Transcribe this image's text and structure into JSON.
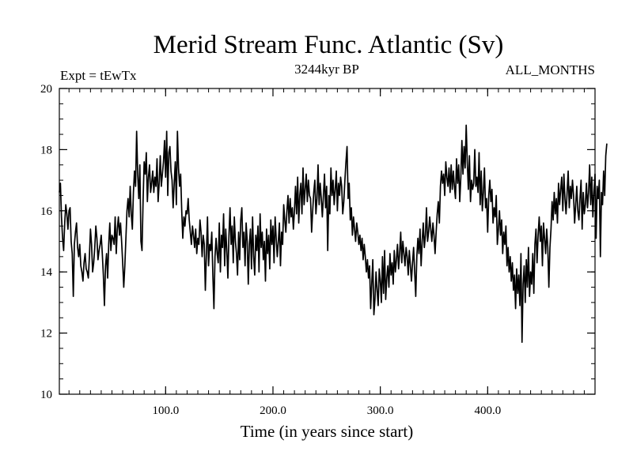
{
  "chart_data": {
    "type": "line",
    "title": "Merid Stream Func. Atlantic (Sv)",
    "subtitle_left": "Expt = tEwTx",
    "subtitle_center": "3244kyr BP",
    "subtitle_right": "ALL_MONTHS",
    "xlabel": "Time (in years since start)",
    "ylabel": "",
    "xlim": [
      1,
      500
    ],
    "ylim": [
      10,
      20
    ],
    "x_ticks": [
      100,
      200,
      300,
      400
    ],
    "x_tick_labels": [
      "100.0",
      "200.0",
      "300.0",
      "400.0"
    ],
    "y_ticks": [
      10,
      12,
      14,
      16,
      18,
      20
    ],
    "y_tick_labels": [
      "10",
      "12",
      "14",
      "16",
      "18",
      "20"
    ],
    "x_minor_step": 10,
    "y_minor_step": 0.5,
    "series": [
      {
        "name": "Merid Stream Func. Atlantic",
        "color": "#000000",
        "x_start": 1,
        "x_step": 1,
        "values": [
          16.6,
          16.9,
          15.8,
          15.1,
          14.7,
          15.6,
          16.2,
          15.9,
          15.4,
          16.0,
          16.1,
          15.0,
          14.6,
          13.2,
          14.9,
          15.3,
          15.6,
          14.8,
          14.5,
          14.9,
          14.2,
          14.0,
          13.7,
          14.3,
          14.6,
          14.1,
          14.0,
          13.8,
          14.5,
          15.4,
          14.9,
          14.0,
          14.3,
          14.8,
          15.5,
          15.1,
          14.4,
          14.7,
          14.9,
          15.2,
          14.6,
          13.9,
          12.9,
          14.2,
          14.6,
          13.8,
          14.9,
          15.6,
          14.7,
          15.2,
          15.1,
          14.9,
          15.8,
          14.6,
          15.4,
          15.8,
          15.2,
          15.6,
          15.0,
          14.3,
          13.5,
          14.2,
          15.1,
          16.0,
          16.4,
          15.8,
          16.8,
          15.9,
          15.4,
          16.6,
          17.3,
          16.8,
          18.6,
          17.2,
          16.4,
          17.5,
          15.0,
          14.7,
          16.3,
          17.6,
          17.2,
          17.9,
          16.3,
          17.1,
          17.5,
          16.6,
          16.9,
          17.3,
          16.6,
          17.1,
          16.8,
          17.7,
          16.3,
          16.9,
          17.8,
          16.8,
          17.2,
          17.6,
          18.3,
          17.1,
          18.6,
          16.5,
          17.9,
          18.1,
          17.3,
          17.0,
          16.1,
          16.9,
          17.6,
          16.2,
          18.6,
          17.4,
          16.8,
          17.2,
          16.0,
          15.1,
          15.8,
          15.5,
          16.0,
          15.9,
          16.4,
          15.7,
          15.3,
          14.9,
          15.5,
          15.2,
          14.8,
          15.4,
          14.6,
          15.1,
          14.9,
          15.7,
          15.3,
          14.5,
          15.2,
          14.9,
          13.4,
          14.6,
          15.8,
          14.2,
          14.9,
          14.7,
          15.3,
          13.9,
          12.8,
          14.5,
          15.1,
          14.6,
          14.3,
          15.6,
          14.0,
          15.2,
          14.8,
          15.9,
          14.2,
          15.4,
          14.7,
          13.8,
          15.2,
          16.1,
          14.9,
          15.5,
          14.3,
          15.8,
          15.0,
          14.6,
          13.9,
          15.3,
          14.4,
          15.7,
          16.1,
          14.8,
          15.3,
          14.2,
          15.6,
          15.0,
          13.6,
          14.9,
          15.4,
          14.1,
          15.8,
          14.5,
          13.9,
          15.2,
          14.7,
          15.5,
          14.0,
          15.9,
          14.8,
          15.3,
          14.4,
          15.0,
          13.7,
          15.4,
          14.6,
          15.2,
          14.1,
          15.7,
          14.9,
          15.5,
          14.3,
          15.8,
          15.1,
          14.5,
          15.0,
          15.6,
          14.2,
          15.3,
          14.9,
          16.2,
          15.7,
          15.3,
          16.0,
          16.5,
          15.6,
          16.4,
          15.8,
          16.1,
          15.4,
          16.0,
          16.8,
          15.9,
          17.1,
          15.6,
          16.5,
          16.9,
          15.9,
          17.4,
          16.2,
          16.7,
          17.2,
          16.3,
          17.0,
          16.5,
          16.4,
          15.3,
          16.0,
          16.6,
          17.0,
          15.9,
          16.4,
          17.5,
          16.2,
          16.9,
          16.4,
          15.8,
          16.5,
          17.2,
          16.1,
          16.8,
          14.7,
          16.5,
          15.9,
          17.4,
          16.5,
          17.0,
          16.2,
          16.7,
          17.3,
          16.0,
          16.9,
          16.5,
          17.1,
          16.8,
          15.9,
          16.3,
          17.0,
          17.6,
          18.1,
          16.4,
          16.9,
          15.7,
          16.1,
          15.2,
          15.8,
          15.4,
          15.0,
          15.6,
          15.3,
          14.9,
          15.2,
          14.7,
          15.1,
          14.4,
          14.9,
          14.5,
          14.0,
          14.4,
          13.8,
          14.2,
          12.8,
          13.6,
          14.4,
          12.6,
          13.1,
          14.0,
          13.4,
          12.9,
          14.1,
          13.7,
          13.0,
          14.5,
          13.3,
          14.7,
          13.1,
          13.8,
          14.2,
          13.5,
          14.6,
          13.9,
          14.3,
          13.6,
          14.7,
          14.0,
          14.4,
          14.9,
          14.1,
          14.6,
          15.3,
          14.3,
          15.0,
          14.6,
          14.2,
          14.8,
          14.5,
          13.9,
          14.7,
          14.2,
          13.7,
          14.3,
          14.8,
          14.0,
          13.2,
          14.5,
          15.1,
          14.6,
          15.4,
          14.2,
          15.0,
          15.6,
          14.8,
          15.2,
          16.1,
          15.0,
          15.3,
          15.8,
          15.4,
          15.0,
          15.6,
          15.2,
          14.6,
          15.3,
          15.9,
          16.3,
          15.6,
          16.8,
          17.3,
          16.9,
          17.2,
          16.5,
          17.6,
          17.1,
          16.8,
          17.4,
          16.6,
          17.5,
          16.7,
          17.3,
          16.8,
          16.4,
          17.7,
          16.9,
          17.5,
          16.3,
          17.1,
          18.3,
          17.2,
          18.1,
          17.4,
          18.8,
          17.6,
          16.7,
          17.8,
          16.3,
          17.0,
          16.7,
          16.9,
          18.0,
          16.8,
          17.1,
          16.6,
          17.9,
          16.2,
          17.3,
          16.0,
          16.6,
          17.4,
          16.1,
          16.4,
          15.3,
          16.5,
          17.0,
          16.3,
          16.7,
          15.6,
          16.1,
          15.8,
          16.5,
          14.9,
          15.4,
          16.0,
          15.2,
          15.7,
          14.6,
          15.3,
          14.9,
          15.5,
          14.2,
          14.8,
          14.0,
          14.5,
          13.7,
          14.3,
          13.4,
          13.9,
          12.8,
          14.1,
          13.3,
          13.9,
          12.9,
          14.6,
          11.7,
          13.6,
          14.2,
          13.0,
          14.4,
          13.5,
          14.8,
          13.2,
          14.0,
          13.6,
          14.6,
          13.3,
          14.9,
          15.4,
          14.3,
          15.2,
          15.8,
          15.0,
          15.5,
          14.2,
          15.6,
          15.1,
          14.6,
          15.4,
          14.8,
          13.5,
          14.8,
          15.4,
          16.3,
          15.7,
          16.6,
          15.9,
          16.4,
          15.6,
          16.9,
          16.2,
          16.7,
          17.1,
          16.0,
          17.2,
          16.4,
          15.9,
          16.6,
          17.3,
          16.1,
          16.8,
          16.4,
          17.0,
          16.5,
          15.6,
          16.2,
          16.8,
          16.0,
          15.7,
          16.4,
          17.0,
          15.4,
          16.6,
          15.9,
          16.2,
          16.9,
          16.1,
          16.6,
          17.5,
          16.2,
          17.1,
          15.8,
          16.6,
          17.2,
          15.1,
          16.8,
          16.4,
          17.0,
          14.5,
          16.6,
          16.2,
          17.3,
          16.5,
          17.8,
          18.2
        ]
      }
    ]
  }
}
